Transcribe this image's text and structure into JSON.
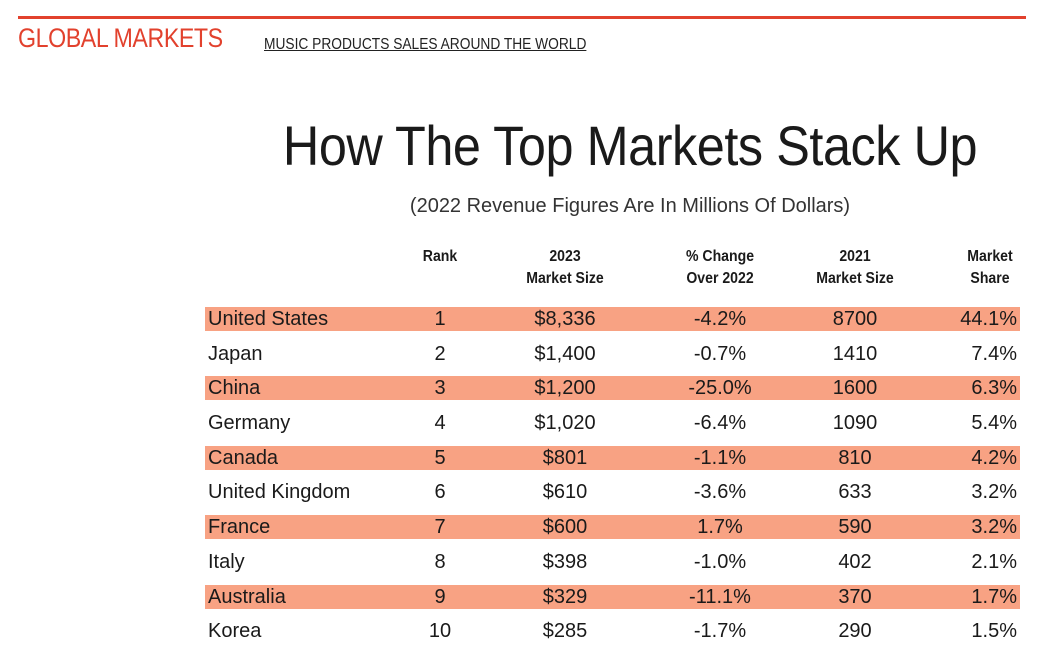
{
  "header": {
    "section_title": "GLOBAL MARKETS",
    "section_subtitle": "MUSIC PRODUCTS SALES AROUND THE WORLD",
    "accent_color": "#e2412d"
  },
  "title": "How The Top Markets Stack Up",
  "subtitle": "(2022 Revenue Figures Are In Millions Of Dollars)",
  "table": {
    "shade_color": "#f8a283",
    "columns": {
      "rank": [
        "Rank"
      ],
      "market_2023": [
        "2023",
        "Market Size"
      ],
      "change": [
        "% Change",
        "Over 2022"
      ],
      "market_2021": [
        "2021",
        "Market Size"
      ],
      "share": [
        "Market",
        "Share"
      ]
    },
    "rows": [
      {
        "country": "United States",
        "rank": "1",
        "market_2023": "$8,336",
        "change": "-4.2%",
        "market_2021": "8700",
        "share": "44.1%",
        "shaded": true
      },
      {
        "country": "Japan",
        "rank": "2",
        "market_2023": "$1,400",
        "change": "-0.7%",
        "market_2021": "1410",
        "share": "7.4%",
        "shaded": false
      },
      {
        "country": "China",
        "rank": "3",
        "market_2023": "$1,200",
        "change": "-25.0%",
        "market_2021": "1600",
        "share": "6.3%",
        "shaded": true
      },
      {
        "country": "Germany",
        "rank": "4",
        "market_2023": "$1,020",
        "change": "-6.4%",
        "market_2021": "1090",
        "share": "5.4%",
        "shaded": false
      },
      {
        "country": "Canada",
        "rank": "5",
        "market_2023": "$801",
        "change": "-1.1%",
        "market_2021": "810",
        "share": "4.2%",
        "shaded": true
      },
      {
        "country": "United Kingdom",
        "rank": "6",
        "market_2023": "$610",
        "change": "-3.6%",
        "market_2021": "633",
        "share": "3.2%",
        "shaded": false
      },
      {
        "country": "France",
        "rank": "7",
        "market_2023": "$600",
        "change": "1.7%",
        "market_2021": "590",
        "share": "3.2%",
        "shaded": true
      },
      {
        "country": "Italy",
        "rank": "8",
        "market_2023": "$398",
        "change": "-1.0%",
        "market_2021": "402",
        "share": "2.1%",
        "shaded": false
      },
      {
        "country": "Australia",
        "rank": "9",
        "market_2023": "$329",
        "change": "-11.1%",
        "market_2021": "370",
        "share": "1.7%",
        "shaded": true
      },
      {
        "country": "Korea",
        "rank": "10",
        "market_2023": "$285",
        "change": "-1.7%",
        "market_2021": "290",
        "share": "1.5%",
        "shaded": false
      }
    ]
  }
}
